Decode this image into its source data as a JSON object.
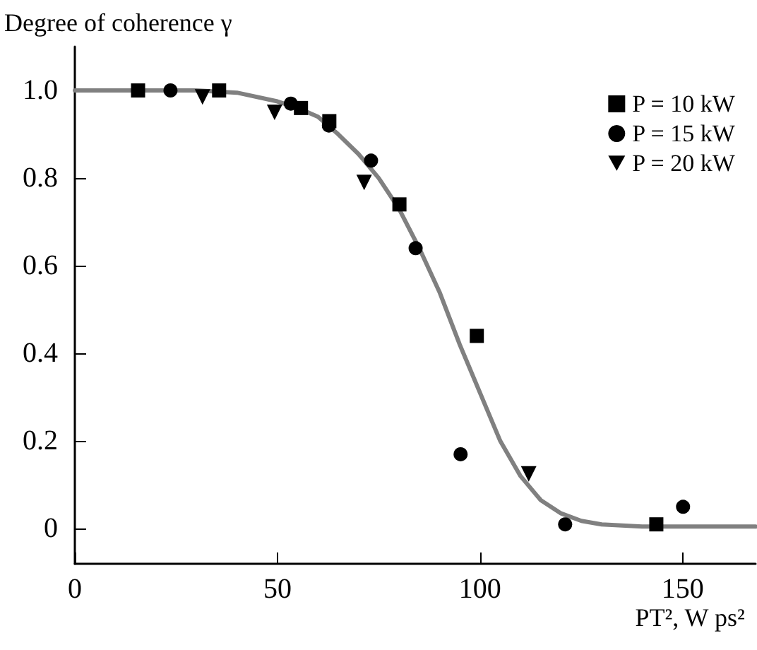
{
  "chart_data": {
    "type": "scatter",
    "ylabel": "Degree of coherence γ",
    "xlabel": "PT², W ps²",
    "xlim": [
      0,
      168
    ],
    "xticks": [
      0,
      50,
      100,
      150
    ],
    "ylim": [
      -0.08,
      1.1
    ],
    "yticks": [
      0,
      0.2,
      0.4,
      0.6,
      0.8,
      {
        "value": 1,
        "label": "1.0"
      }
    ],
    "grid": false,
    "legend": "top right",
    "series": [
      {
        "name": "P = 10 kW",
        "color": "#000000",
        "marker": "square",
        "x": [
          15.6,
          35.6,
          55.8,
          62.8,
          80.1,
          99.2,
          143.5
        ],
        "values": [
          1.0,
          1.0,
          0.96,
          0.93,
          0.74,
          0.44,
          0.01
        ]
      },
      {
        "name": "P = 15 kW",
        "color": "#000000",
        "marker": "circle",
        "x": [
          23.6,
          53.3,
          62.7,
          73.1,
          84.1,
          95.2,
          121,
          150.1
        ],
        "values": [
          1.0,
          0.97,
          0.92,
          0.84,
          0.64,
          0.17,
          0.01,
          0.05
        ]
      },
      {
        "name": "P = 20 kW",
        "color": "#000000",
        "marker": "triangle",
        "x": [
          31.5,
          49.3,
          71.4,
          112
        ],
        "values": [
          0.985,
          0.95,
          0.79,
          0.125
        ]
      },
      {
        "type": "line",
        "color": "#808080",
        "marker": "none",
        "x": [
          0,
          10,
          20,
          30,
          40,
          50,
          55,
          60,
          65,
          70,
          75,
          80,
          85,
          90,
          95,
          100,
          105,
          110,
          115,
          120,
          125,
          130,
          140,
          150,
          168
        ],
        "values": [
          1,
          1,
          1,
          1,
          0.995,
          0.975,
          0.96,
          0.94,
          0.9,
          0.855,
          0.8,
          0.73,
          0.64,
          0.54,
          0.42,
          0.31,
          0.2,
          0.12,
          0.065,
          0.035,
          0.018,
          0.01,
          0.005,
          0.005,
          0.005
        ]
      }
    ]
  }
}
